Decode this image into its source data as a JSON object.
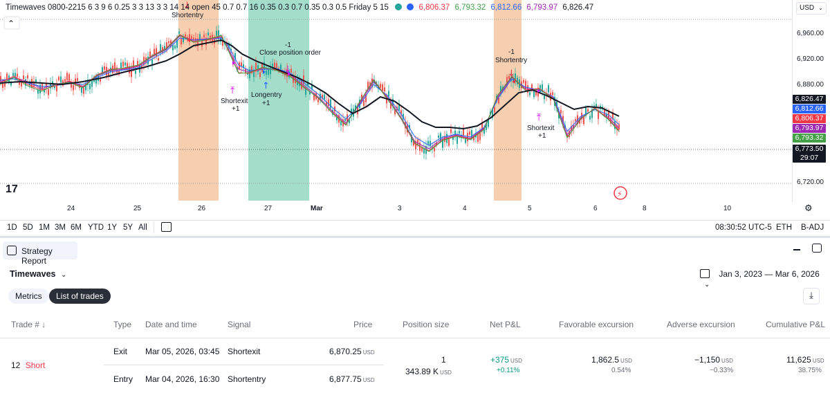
{
  "legend": {
    "title": "Timewaves 0800-2215 6 3 9 6 0.25 3 3 13 3 3 14 14 open 45 0.7 0.7 16 0.35 0.3 0.7 0.35 0.3 0.5 Friday 5 15",
    "v1": "6,806.37",
    "v2": "6,793.32",
    "v3": "6,812.66",
    "v4": "6,793.97",
    "v5": "6,826.47",
    "c1": "#f23645",
    "c2": "#43a047",
    "c3": "#2962ff",
    "c4": "#9c27b0",
    "c5": "#131722"
  },
  "currency": "USD",
  "price_axis": {
    "ticks": [
      "6,960.00",
      "6,920.00",
      "6,880.00",
      "6,720.00"
    ],
    "tags": [
      {
        "label": "6,826.47",
        "color": "#131722"
      },
      {
        "label": "6,812.66",
        "color": "#2962ff"
      },
      {
        "label": "6,806.37",
        "color": "#f23645"
      },
      {
        "label": "6,793.97",
        "color": "#9c27b0"
      },
      {
        "label": "6,793.32",
        "color": "#43a047"
      }
    ],
    "last_price": "6,773.50",
    "countdown": "29:07"
  },
  "time_axis": [
    "24",
    "25",
    "26",
    "27",
    "Mar",
    "3",
    "4",
    "5",
    "6",
    "8",
    "10"
  ],
  "annotations": {
    "shortentry1": "Shortentry",
    "shortexit1": "Shortexit",
    "shortexit1_qty": "+1",
    "longentry": "Longentry",
    "longentry_qty": "+1",
    "close_qty": "-1",
    "close_order": "Close position order",
    "se2_qty": "-1",
    "shortentry2": "Shortentry",
    "shortexit2": "Shortexit",
    "shortexit2_qty": "+1"
  },
  "toolbar": {
    "ranges": [
      "1D",
      "5D",
      "1M",
      "3M",
      "6M",
      "YTD",
      "1Y",
      "5Y",
      "All"
    ],
    "time": "08:30:52 UTC-5",
    "session": "ETH",
    "adj": "B-ADJ"
  },
  "report": {
    "title": "Strategy Report",
    "strategy": "Timewaves",
    "date_range": "Jan 3, 2023 — Mar 6, 2026",
    "tabs": [
      "Metrics",
      "List of trades"
    ]
  },
  "table": {
    "headers": [
      "Trade # ↓",
      "Type",
      "Date and time",
      "Signal",
      "Price",
      "Position size",
      "Net P&L",
      "Favorable excursion",
      "Adverse excursion",
      "Cumulative P&L"
    ],
    "trade_num": "12",
    "trade_side": "Short",
    "exit": {
      "type": "Exit",
      "date": "Mar 05, 2026, 03:45",
      "signal": "Shortexit",
      "price": "6,870.25"
    },
    "entry": {
      "type": "Entry",
      "date": "Mar 04, 2026, 16:30",
      "signal": "Shortentry",
      "price": "6,877.75"
    },
    "pos_qty": "1",
    "pos_value": "343.89 K",
    "net_pnl": "+375",
    "net_pnl_pct": "+0.11%",
    "fav": "1,862.5",
    "fav_pct": "0.54%",
    "adv": "−1,150",
    "adv_pct": "−0.33%",
    "cum": "11,625",
    "cum_pct": "38.75%",
    "unit": "USD"
  }
}
